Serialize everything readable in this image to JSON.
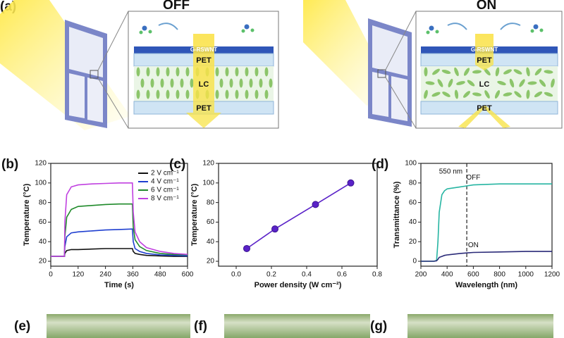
{
  "diagram": {
    "label": "(a)",
    "off": {
      "title": "OFF",
      "top": "G-RSWNT",
      "pet_top": "PET",
      "lc": "LC",
      "pet_bottom": "PET"
    },
    "on": {
      "title": "ON",
      "top": "G-RSWNT",
      "pet_top": "PET",
      "lc": "LC",
      "pet_bottom": "PET"
    }
  },
  "chart_data": [
    {
      "type": "line",
      "panel": "(b)",
      "xlabel": "Time (s)",
      "ylabel": "Temperature (°C)",
      "x": [
        0,
        60,
        62,
        70,
        90,
        120,
        180,
        240,
        300,
        358,
        362,
        370,
        390,
        420,
        480,
        540,
        600
      ],
      "series": [
        {
          "name": "2 V cm⁻¹",
          "color": "#111111",
          "values": [
            25,
            25,
            28,
            31,
            32,
            32,
            32.5,
            33,
            33,
            33,
            30,
            28,
            27,
            26,
            25.5,
            25,
            25
          ]
        },
        {
          "name": "4 V cm⁻¹",
          "color": "#1f3fd0",
          "values": [
            25,
            25,
            35,
            45,
            49,
            50,
            51,
            52,
            52.5,
            53,
            40,
            33,
            30,
            28,
            26.5,
            26,
            25.5
          ]
        },
        {
          "name": "6 V cm⁻¹",
          "color": "#1f8a2a",
          "values": [
            25,
            25,
            45,
            65,
            73,
            76,
            77,
            78,
            78.5,
            78.5,
            55,
            42,
            35,
            31,
            28,
            27,
            26.5
          ]
        },
        {
          "name": "8 V cm⁻¹",
          "color": "#c040e0",
          "values": [
            25,
            25,
            60,
            88,
            96,
            98,
            99,
            99.5,
            100,
            100,
            70,
            50,
            40,
            34,
            30,
            28,
            27
          ]
        }
      ],
      "xlim": [
        0,
        600
      ],
      "xticks": [
        0,
        120,
        240,
        360,
        480,
        600
      ],
      "ylim": [
        15,
        120
      ],
      "yticks": [
        20,
        40,
        60,
        80,
        100,
        120
      ],
      "legend": "upper right"
    },
    {
      "type": "line",
      "panel": "(c)",
      "xlabel": "Power density (W cm⁻²)",
      "ylabel": "Temperature (°C)",
      "x": [
        0.06,
        0.22,
        0.45,
        0.65
      ],
      "values": [
        33,
        53,
        78,
        100
      ],
      "color": "#5a22c8",
      "markers": true,
      "xlim": [
        -0.1,
        0.8
      ],
      "xticks": [
        {
          "value": 0,
          "label": "0.0"
        },
        {
          "value": 0.2,
          "label": "0.2"
        },
        {
          "value": 0.4,
          "label": "0.4"
        },
        {
          "value": 0.6,
          "label": "0.6"
        },
        {
          "value": 0.8,
          "label": "0.8"
        }
      ],
      "ylim": [
        15,
        120
      ],
      "yticks": [
        20,
        40,
        60,
        80,
        100,
        120
      ]
    },
    {
      "type": "line",
      "panel": "(d)",
      "xlabel": "Wavelength (nm)",
      "ylabel": "Transmittance (%)",
      "x": [
        200,
        300,
        320,
        330,
        340,
        360,
        380,
        400,
        500,
        550,
        600,
        800,
        1000,
        1200
      ],
      "series": [
        {
          "name": "OFF",
          "color": "#26b5a2",
          "values": [
            0,
            0,
            1,
            20,
            50,
            68,
            72,
            74,
            76,
            77,
            78,
            79,
            79,
            79
          ]
        },
        {
          "name": "ON",
          "color": "#2a2a78",
          "values": [
            0,
            0,
            0.5,
            2,
            4,
            5,
            6,
            6.5,
            8,
            8.5,
            9,
            9.5,
            10,
            10
          ]
        }
      ],
      "vline": {
        "x": 550,
        "label": "550 nm"
      },
      "xlim": [
        200,
        1200
      ],
      "xticks": [
        200,
        400,
        600,
        800,
        1000,
        1200
      ],
      "ylim": [
        -5,
        100
      ],
      "yticks": [
        0,
        20,
        40,
        60,
        80,
        100
      ]
    }
  ],
  "photos": [
    {
      "label": "(e)"
    },
    {
      "label": "(f)"
    },
    {
      "label": "(g)"
    }
  ]
}
